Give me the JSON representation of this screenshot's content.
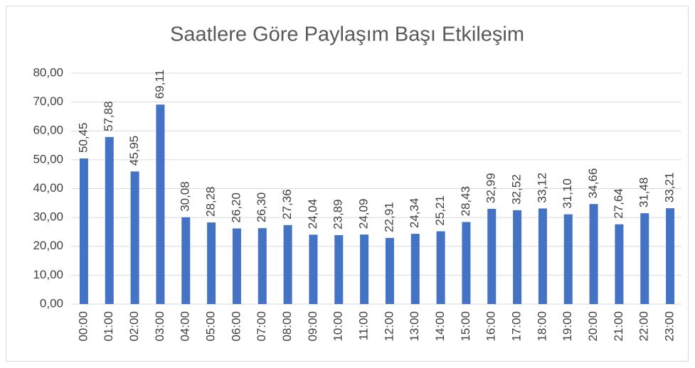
{
  "chart_data": {
    "type": "bar",
    "title": "Saatlere Göre Paylaşım Başı Etkileşim",
    "categories": [
      "00:00",
      "01:00",
      "02:00",
      "03:00",
      "04:00",
      "05:00",
      "06:00",
      "07:00",
      "08:00",
      "09:00",
      "10:00",
      "11:00",
      "12:00",
      "13:00",
      "14:00",
      "15:00",
      "16:00",
      "17:00",
      "18:00",
      "19:00",
      "20:00",
      "21:00",
      "22:00",
      "23:00"
    ],
    "values": [
      50.45,
      57.88,
      45.95,
      69.11,
      30.08,
      28.28,
      26.2,
      26.3,
      27.36,
      24.04,
      23.89,
      24.09,
      22.91,
      24.34,
      25.21,
      28.43,
      32.99,
      32.52,
      33.12,
      31.1,
      34.66,
      27.64,
      31.48,
      33.21
    ],
    "value_labels": [
      "50,45",
      "57,88",
      "45,95",
      "69,11",
      "30,08",
      "28,28",
      "26,20",
      "26,30",
      "27,36",
      "24,04",
      "23,89",
      "24,09",
      "22,91",
      "24,34",
      "25,21",
      "28,43",
      "32,99",
      "32,52",
      "33,12",
      "31,10",
      "34,66",
      "27,64",
      "31,48",
      "33,21"
    ],
    "color": "#4472c4",
    "ylim": [
      0,
      80
    ],
    "yticks": [
      {
        "value": 0,
        "label": "0,00"
      },
      {
        "value": 10,
        "label": "10,00"
      },
      {
        "value": 20,
        "label": "20,00"
      },
      {
        "value": 30,
        "label": "30,00"
      },
      {
        "value": 40,
        "label": "40,00"
      },
      {
        "value": 50,
        "label": "50,00"
      },
      {
        "value": 60,
        "label": "60,00"
      },
      {
        "value": 70,
        "label": "70,00"
      },
      {
        "value": 80,
        "label": "80,00"
      }
    ],
    "grid": true
  }
}
